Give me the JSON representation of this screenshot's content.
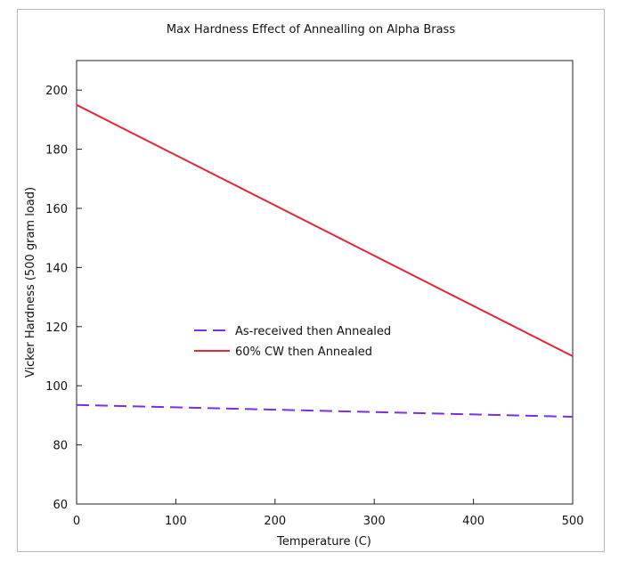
{
  "chart_data": {
    "type": "line",
    "title": "Max Hardness Effect of Annealling on Alpha Brass",
    "xlabel": "Temperature (C)",
    "ylabel": "Vicker Hardness (500 gram load)",
    "xlim": [
      0,
      500
    ],
    "ylim": [
      60,
      210
    ],
    "xticks": [
      0,
      100,
      200,
      300,
      400,
      500
    ],
    "yticks": [
      60,
      80,
      100,
      120,
      140,
      160,
      180,
      200
    ],
    "grid": false,
    "legend_position": "center-left",
    "series": [
      {
        "name": "As-received then Annealed",
        "x": [
          0,
          500
        ],
        "y": [
          93.5,
          89.5
        ],
        "color": "#7b2fe0",
        "style": "dashed"
      },
      {
        "name": "60% CW then Annealed",
        "x": [
          0,
          500
        ],
        "y": [
          195,
          110
        ],
        "color": "#e0283a",
        "style": "solid"
      }
    ]
  }
}
